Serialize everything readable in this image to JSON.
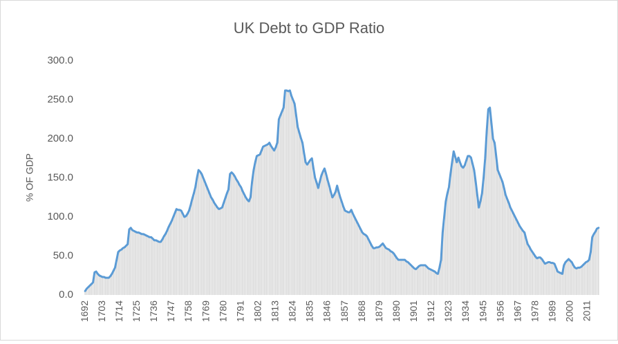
{
  "chart_data": {
    "type": "line",
    "title": "UK Debt to GDP Ratio",
    "y_label": "% OF GDP",
    "color": "#5b9bd5",
    "bar_color": "#d9d9d9",
    "ylim": [
      0,
      300
    ],
    "yticks": [
      {
        "value": 0,
        "label": "0.0"
      },
      {
        "value": 50,
        "label": "50.0"
      },
      {
        "value": 100,
        "label": "100.0"
      },
      {
        "value": 150,
        "label": "150.0"
      },
      {
        "value": 200,
        "label": "200.0"
      },
      {
        "value": 250,
        "label": "250.0"
      },
      {
        "value": 300,
        "label": "300.0"
      }
    ],
    "categories": [
      "1692",
      null,
      null,
      null,
      null,
      null,
      null,
      null,
      null,
      null,
      null,
      "1703",
      null,
      null,
      null,
      null,
      null,
      null,
      null,
      null,
      null,
      null,
      "1714",
      null,
      null,
      null,
      null,
      null,
      null,
      null,
      null,
      null,
      null,
      "1725",
      null,
      null,
      null,
      null,
      null,
      null,
      null,
      null,
      null,
      null,
      "1736",
      null,
      null,
      null,
      null,
      null,
      null,
      null,
      null,
      null,
      null,
      "1747",
      null,
      null,
      null,
      null,
      null,
      null,
      null,
      null,
      null,
      null,
      "1758",
      null,
      null,
      null,
      null,
      null,
      null,
      null,
      null,
      null,
      null,
      "1769",
      null,
      null,
      null,
      null,
      null,
      null,
      null,
      null,
      null,
      null,
      "1780",
      null,
      null,
      null,
      null,
      null,
      null,
      null,
      null,
      null,
      null,
      "1791",
      null,
      null,
      null,
      null,
      null,
      null,
      null,
      null,
      null,
      null,
      "1802",
      null,
      null,
      null,
      null,
      null,
      null,
      null,
      null,
      null,
      null,
      "1813",
      null,
      null,
      null,
      null,
      null,
      null,
      null,
      null,
      null,
      null,
      "1824",
      null,
      null,
      null,
      null,
      null,
      null,
      null,
      null,
      null,
      null,
      "1835",
      null,
      null,
      null,
      null,
      null,
      null,
      null,
      null,
      null,
      null,
      "1846",
      null,
      null,
      null,
      null,
      null,
      null,
      null,
      null,
      null,
      null,
      "1857",
      null,
      null,
      null,
      null,
      null,
      null,
      null,
      null,
      null,
      null,
      "1868",
      null,
      null,
      null,
      null,
      null,
      null,
      null,
      null,
      null,
      null,
      "1879",
      null,
      null,
      null,
      null,
      null,
      null,
      null,
      null,
      null,
      null,
      "1890",
      null,
      null,
      null,
      null,
      null,
      null,
      null,
      null,
      null,
      null,
      "1901",
      null,
      null,
      null,
      null,
      null,
      null,
      null,
      null,
      null,
      null,
      "1912",
      null,
      null,
      null,
      null,
      null,
      null,
      null,
      null,
      null,
      null,
      "1923",
      null,
      null,
      null,
      null,
      null,
      null,
      null,
      null,
      null,
      null,
      "1934",
      null,
      null,
      null,
      null,
      null,
      null,
      null,
      null,
      null,
      null,
      "1945",
      null,
      null,
      null,
      null,
      null,
      null,
      null,
      null,
      null,
      null,
      "1956",
      null,
      null,
      null,
      null,
      null,
      null,
      null,
      null,
      null,
      null,
      "1967",
      null,
      null,
      null,
      null,
      null,
      null,
      null,
      null,
      null,
      null,
      "1978",
      null,
      null,
      null,
      null,
      null,
      null,
      null,
      null,
      null,
      null,
      "1989",
      null,
      null,
      null,
      null,
      null,
      null,
      null,
      null,
      null,
      null,
      "2000",
      null,
      null,
      null,
      null,
      null,
      null,
      null,
      null,
      null,
      null,
      "2011",
      null,
      null,
      null,
      null,
      null,
      null,
      null
    ],
    "values": [
      5,
      8,
      10,
      12,
      14,
      16,
      29,
      30,
      27,
      25,
      24,
      23,
      23,
      22,
      22,
      22,
      24,
      27,
      31,
      35,
      45,
      55,
      57,
      58,
      60,
      61,
      63,
      65,
      84,
      86,
      83,
      82,
      81,
      80,
      80,
      79,
      78,
      78,
      77,
      76,
      75,
      74,
      74,
      72,
      70,
      70,
      69,
      68,
      68,
      71,
      75,
      78,
      82,
      87,
      91,
      95,
      100,
      105,
      110,
      109,
      109,
      108,
      104,
      100,
      101,
      104,
      108,
      115,
      123,
      130,
      138,
      150,
      160,
      158,
      155,
      150,
      145,
      140,
      135,
      130,
      125,
      122,
      118,
      115,
      112,
      110,
      111,
      112,
      118,
      124,
      130,
      135,
      155,
      157,
      155,
      152,
      148,
      145,
      141,
      138,
      133,
      129,
      125,
      122,
      120,
      125,
      145,
      160,
      170,
      178,
      179,
      180,
      185,
      190,
      191,
      192,
      193,
      195,
      191,
      188,
      185,
      189,
      195,
      225,
      230,
      235,
      240,
      262,
      262,
      261,
      262,
      255,
      250,
      245,
      230,
      215,
      208,
      201,
      195,
      182,
      170,
      167,
      170,
      173,
      175,
      162,
      150,
      144,
      137,
      145,
      153,
      158,
      162,
      155,
      147,
      140,
      132,
      125,
      128,
      132,
      140,
      132,
      125,
      119,
      113,
      108,
      107,
      106,
      106,
      109,
      104,
      100,
      96,
      92,
      88,
      84,
      80,
      78,
      77,
      75,
      71,
      67,
      63,
      60,
      60,
      61,
      61,
      62,
      64,
      66,
      63,
      60,
      59,
      58,
      56,
      55,
      53,
      50,
      47,
      45,
      45,
      45,
      45,
      45,
      43,
      42,
      40,
      38,
      36,
      34,
      33,
      35,
      37,
      38,
      38,
      38,
      38,
      36,
      34,
      33,
      32,
      31,
      30,
      28,
      27,
      35,
      45,
      80,
      100,
      120,
      130,
      138,
      155,
      170,
      184,
      177,
      170,
      176,
      170,
      165,
      163,
      166,
      172,
      178,
      178,
      176,
      168,
      160,
      145,
      128,
      112,
      120,
      130,
      150,
      175,
      210,
      238,
      240,
      220,
      200,
      195,
      178,
      160,
      155,
      150,
      145,
      137,
      128,
      123,
      118,
      112,
      108,
      104,
      100,
      96,
      92,
      88,
      85,
      82,
      80,
      72,
      65,
      62,
      58,
      55,
      52,
      49,
      47,
      48,
      48,
      46,
      43,
      40,
      41,
      42,
      42,
      41,
      41,
      40,
      35,
      30,
      29,
      28,
      27,
      38,
      42,
      44,
      46,
      44,
      42,
      38,
      35,
      34,
      35,
      35,
      36,
      38,
      40,
      42,
      43,
      45,
      55,
      74,
      78,
      81,
      85,
      86
    ]
  }
}
